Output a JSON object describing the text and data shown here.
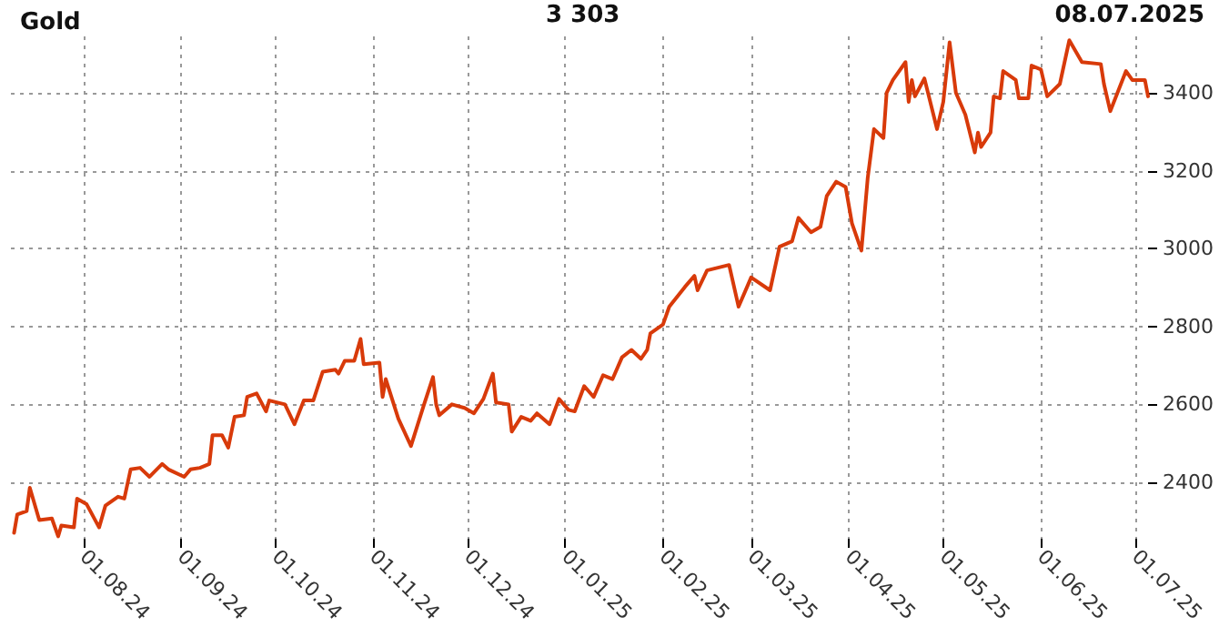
{
  "chart_data": {
    "type": "line",
    "title": "Gold",
    "subtitle": "3 303",
    "annotations": [
      "08.07.2025"
    ],
    "x": [
      "2024-07-10",
      "2024-07-11",
      "2024-07-14",
      "2024-07-15",
      "2024-07-18",
      "2024-07-22",
      "2024-07-24",
      "2024-07-25",
      "2024-07-29",
      "2024-07-30",
      "2024-08-02",
      "2024-08-06",
      "2024-08-08",
      "2024-08-12",
      "2024-08-14",
      "2024-08-16",
      "2024-08-19",
      "2024-08-22",
      "2024-08-26",
      "2024-08-28",
      "2024-09-02",
      "2024-09-04",
      "2024-09-07",
      "2024-09-10",
      "2024-09-11",
      "2024-09-14",
      "2024-09-16",
      "2024-09-18",
      "2024-09-21",
      "2024-09-22",
      "2024-09-25",
      "2024-09-28",
      "2024-09-29",
      "2024-10-04",
      "2024-10-07",
      "2024-10-10",
      "2024-10-13",
      "2024-10-16",
      "2024-10-20",
      "2024-10-21",
      "2024-10-23",
      "2024-10-26",
      "2024-10-28",
      "2024-10-29",
      "2024-11-03",
      "2024-11-04",
      "2024-11-05",
      "2024-11-09",
      "2024-11-13",
      "2024-11-17",
      "2024-11-20",
      "2024-11-21",
      "2024-11-22",
      "2024-11-26",
      "2024-11-30",
      "2024-12-03",
      "2024-12-06",
      "2024-12-09",
      "2024-12-10",
      "2024-12-14",
      "2024-12-15",
      "2024-12-18",
      "2024-12-21",
      "2024-12-23",
      "2024-12-27",
      "2024-12-30",
      "2025-01-02",
      "2025-01-04",
      "2025-01-07",
      "2025-01-10",
      "2025-01-13",
      "2025-01-16",
      "2025-01-19",
      "2025-01-22",
      "2025-01-25",
      "2025-01-27",
      "2025-01-28",
      "2025-02-01",
      "2025-02-03",
      "2025-02-08",
      "2025-02-11",
      "2025-02-12",
      "2025-02-15",
      "2025-02-22",
      "2025-02-25",
      "2025-03-01",
      "2025-03-07",
      "2025-03-10",
      "2025-03-14",
      "2025-03-16",
      "2025-03-20",
      "2025-03-23",
      "2025-03-25",
      "2025-03-28",
      "2025-03-31",
      "2025-04-02",
      "2025-04-05",
      "2025-04-07",
      "2025-04-09",
      "2025-04-12",
      "2025-04-13",
      "2025-04-15",
      "2025-04-19",
      "2025-04-20",
      "2025-04-21",
      "2025-04-22",
      "2025-04-25",
      "2025-04-29",
      "2025-05-01",
      "2025-05-03",
      "2025-05-05",
      "2025-05-08",
      "2025-05-11",
      "2025-05-12",
      "2025-05-13",
      "2025-05-16",
      "2025-05-17",
      "2025-05-19",
      "2025-05-20",
      "2025-05-24",
      "2025-05-25",
      "2025-05-28",
      "2025-05-29",
      "2025-06-01",
      "2025-06-03",
      "2025-06-07",
      "2025-06-10",
      "2025-06-14",
      "2025-06-20",
      "2025-06-21",
      "2025-06-23",
      "2025-06-28",
      "2025-06-30",
      "2025-07-04",
      "2025-07-05"
    ],
    "series": [
      {
        "color": "#d83a0a",
        "values": [
          2270,
          2317,
          2326,
          2386,
          2303,
          2307,
          2261,
          2289,
          2284,
          2358,
          2344,
          2284,
          2340,
          2363,
          2358,
          2433,
          2437,
          2414,
          2447,
          2433,
          2414,
          2433,
          2437,
          2447,
          2521,
          2521,
          2489,
          2568,
          2572,
          2619,
          2628,
          2582,
          2610,
          2600,
          2549,
          2610,
          2610,
          2684,
          2689,
          2679,
          2712,
          2712,
          2768,
          2703,
          2707,
          2619,
          2665,
          2563,
          2493,
          2596,
          2670,
          2600,
          2572,
          2600,
          2591,
          2577,
          2614,
          2679,
          2605,
          2600,
          2530,
          2568,
          2558,
          2577,
          2549,
          2614,
          2586,
          2582,
          2647,
          2619,
          2675,
          2665,
          2721,
          2740,
          2717,
          2740,
          2782,
          2805,
          2851,
          2902,
          2930,
          2893,
          2944,
          2958,
          2851,
          2926,
          2893,
          3005,
          3019,
          3079,
          3042,
          3056,
          3135,
          3172,
          3158,
          3065,
          2995,
          3181,
          3307,
          3284,
          3400,
          3433,
          3479,
          3377,
          3433,
          3391,
          3437,
          3307,
          3377,
          3530,
          3400,
          3344,
          3247,
          3298,
          3261,
          3298,
          3391,
          3386,
          3456,
          3433,
          3386,
          3386,
          3470,
          3460,
          3391,
          3423,
          3535,
          3479,
          3474,
          3423,
          3353,
          3456,
          3433,
          3433,
          3391
        ]
      }
    ],
    "xlim": [
      "2024-07-09",
      "2025-07-05"
    ],
    "xticks": [
      {
        "value": "2024-08-01",
        "label": "01.08.24"
      },
      {
        "value": "2024-09-01",
        "label": "01.09.24"
      },
      {
        "value": "2024-10-01",
        "label": "01.10.24"
      },
      {
        "value": "2024-11-01",
        "label": "01.11.24"
      },
      {
        "value": "2024-12-01",
        "label": "01.12.24"
      },
      {
        "value": "2025-01-01",
        "label": "01.01.25"
      },
      {
        "value": "2025-02-01",
        "label": "01.02.25"
      },
      {
        "value": "2025-03-01",
        "label": "01.03.25"
      },
      {
        "value": "2025-04-01",
        "label": "01.04.25"
      },
      {
        "value": "2025-05-01",
        "label": "01.05.25"
      },
      {
        "value": "2025-06-01",
        "label": "01.06.25"
      },
      {
        "value": "2025-07-01",
        "label": "01.07.25"
      }
    ],
    "ylim": [
      2255,
      3545
    ],
    "yticks": [
      2400,
      2600,
      2800,
      3000,
      3200,
      3400
    ],
    "grid": true,
    "marker": "none",
    "line_style": "solid"
  }
}
